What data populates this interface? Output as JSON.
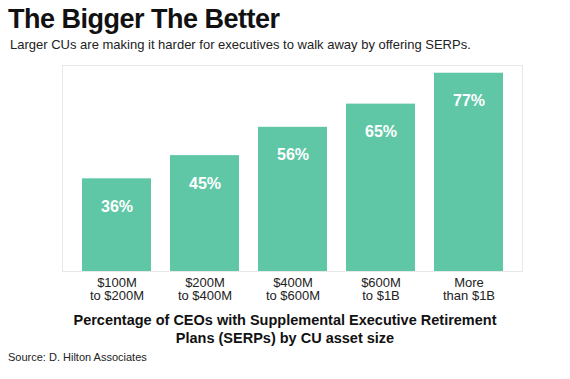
{
  "chart_data": {
    "type": "bar",
    "title": "The Bigger The Better",
    "subtitle": "Larger CUs are making it harder for executives to walk away by offering SERPs.",
    "xlabel": "Percentage of CEOs with Supplemental Executive Retirement Plans (SERPs) by CU asset size",
    "source": "Source: D. Hilton Associates",
    "categories": [
      "$100M\nto $200M",
      "$200M\nto $400M",
      "$400M\nto $600M",
      "$600M\nto $1B",
      "More\nthan $1B"
    ],
    "values": [
      36,
      45,
      56,
      65,
      77
    ],
    "value_labels": [
      "36%",
      "45%",
      "56%",
      "65%",
      "77%"
    ],
    "data_labels": true,
    "color": "#5fc7a6",
    "ylim": [
      0,
      80
    ],
    "yticks": [],
    "tick_labels": "x",
    "grid": false
  }
}
